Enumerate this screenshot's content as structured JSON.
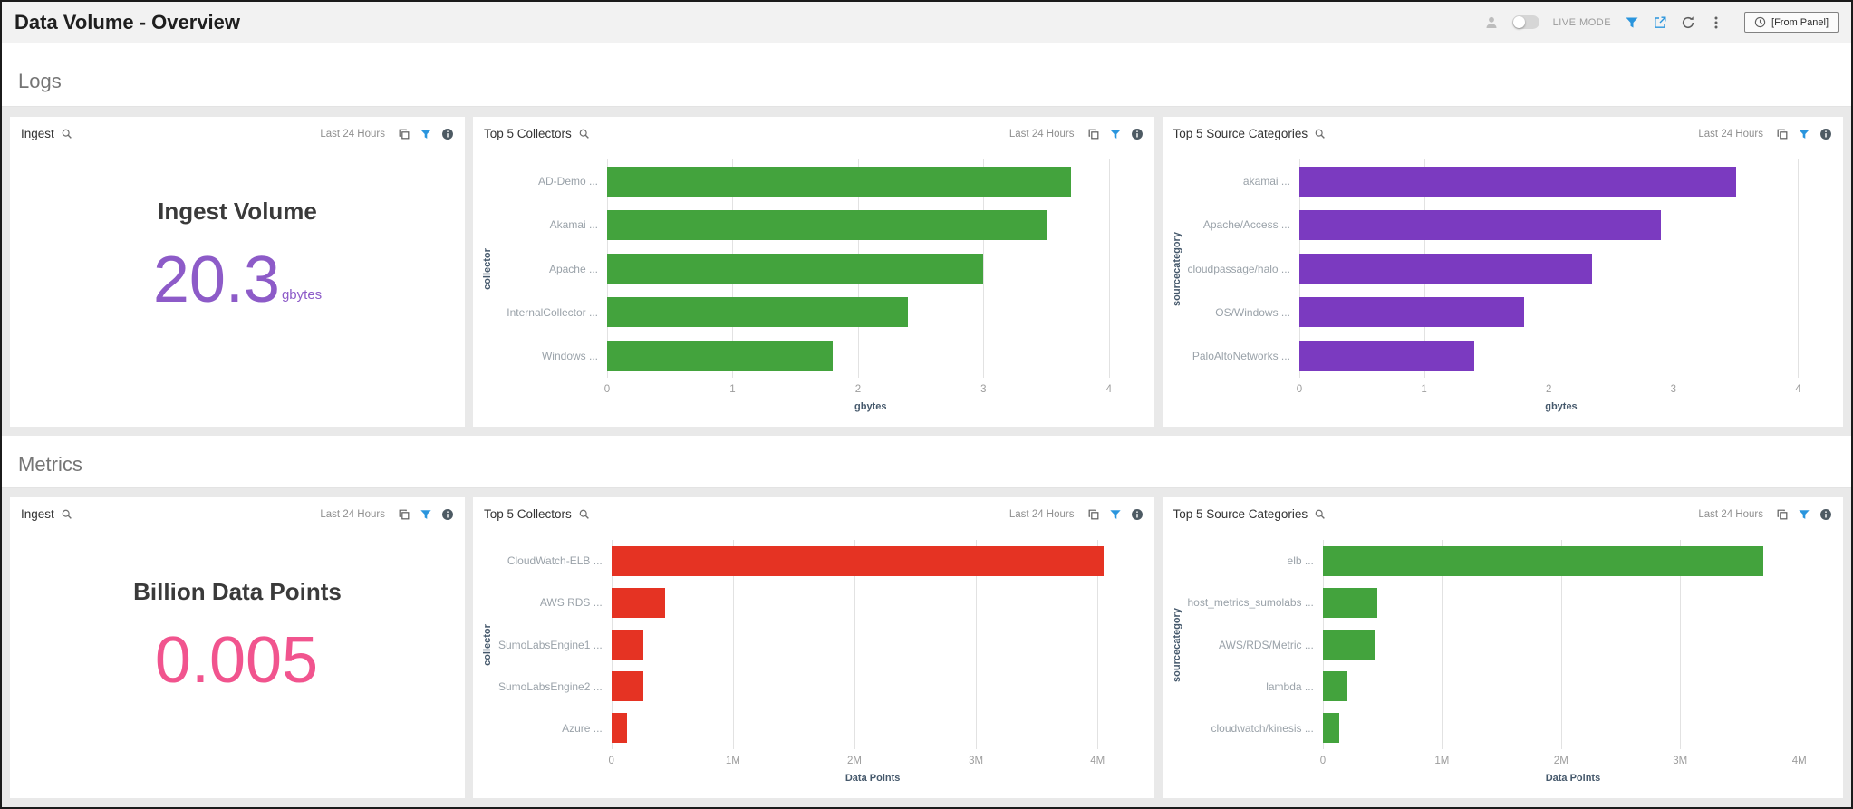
{
  "header": {
    "title": "Data Volume - Overview",
    "live_mode_label": "LIVE MODE",
    "time_range_button": "[From Panel]"
  },
  "sections": {
    "logs": {
      "title": "Logs"
    },
    "metrics": {
      "title": "Metrics"
    }
  },
  "icons": {
    "topbar": [
      "person-icon",
      "live-mode-toggle",
      "filter-icon",
      "share-icon",
      "refresh-icon",
      "kebab-menu-icon",
      "clock-icon"
    ],
    "panel_header": [
      "search-icon",
      "copy-icon",
      "filter-icon",
      "info-icon"
    ]
  },
  "panels": {
    "logs_ingest": {
      "title": "Ingest",
      "time_range": "Last 24 Hours",
      "heading": "Ingest Volume",
      "value": "20.3",
      "unit": "gbytes",
      "value_color": "#8d5bc8"
    },
    "logs_collectors": {
      "title": "Top 5 Collectors",
      "time_range": "Last 24 Hours"
    },
    "logs_sources": {
      "title": "Top 5 Source Categories",
      "time_range": "Last 24 Hours"
    },
    "metrics_ingest": {
      "title": "Ingest",
      "time_range": "Last 24 Hours",
      "heading": "Billion Data Points",
      "value": "0.005",
      "unit": "",
      "value_color": "#f1548e"
    },
    "metrics_collectors": {
      "title": "Top 5 Collectors",
      "time_range": "Last 24 Hours"
    },
    "metrics_sources": {
      "title": "Top 5 Source Categories",
      "time_range": "Last 24 Hours"
    }
  },
  "chart_data": [
    {
      "id": "logs_collectors",
      "type": "bar",
      "orientation": "horizontal",
      "title": "Top 5 Collectors",
      "categories": [
        "AD-Demo",
        "Akamai",
        "Apache",
        "InternalCollector",
        "Windows"
      ],
      "category_suffix": " ...",
      "values": [
        3.7,
        3.5,
        3.0,
        2.4,
        1.8
      ],
      "xlabel": "gbytes",
      "ylabel": "collector",
      "xmax": 4.2,
      "ticks": [
        {
          "value": 0,
          "label": "0"
        },
        {
          "value": 1,
          "label": "1"
        },
        {
          "value": 2,
          "label": "2"
        },
        {
          "value": 3,
          "label": "3"
        },
        {
          "value": 4,
          "label": "4"
        }
      ],
      "bar_color": "#43a33d",
      "grid": true,
      "legend": false
    },
    {
      "id": "logs_sources",
      "type": "bar",
      "orientation": "horizontal",
      "title": "Top 5 Source Categories",
      "categories": [
        "akamai",
        "Apache/Access",
        "cloudpassage/halo",
        "OS/Windows",
        "PaloAltoNetworks"
      ],
      "category_suffix": " ...",
      "values": [
        3.5,
        2.9,
        2.35,
        1.8,
        1.4
      ],
      "xlabel": "gbytes",
      "ylabel": "sourcecategory",
      "xmax": 4.2,
      "ticks": [
        {
          "value": 0,
          "label": "0"
        },
        {
          "value": 1,
          "label": "1"
        },
        {
          "value": 2,
          "label": "2"
        },
        {
          "value": 3,
          "label": "3"
        },
        {
          "value": 4,
          "label": "4"
        }
      ],
      "bar_color": "#7b3ac0",
      "grid": true,
      "legend": false
    },
    {
      "id": "metrics_collectors",
      "type": "bar",
      "orientation": "horizontal",
      "title": "Top 5 Collectors",
      "categories": [
        "CloudWatch-ELB",
        "AWS RDS",
        "SumoLabsEngine1",
        "SumoLabsEngine2",
        "Azure"
      ],
      "category_suffix": " ...",
      "values": [
        4050000,
        440000,
        260000,
        260000,
        130000
      ],
      "xlabel": "Data Points",
      "ylabel": "collector",
      "xmax": 4300000,
      "ticks": [
        {
          "value": 0,
          "label": "0"
        },
        {
          "value": 1000000,
          "label": "1M"
        },
        {
          "value": 2000000,
          "label": "2M"
        },
        {
          "value": 3000000,
          "label": "3M"
        },
        {
          "value": 4000000,
          "label": "4M"
        }
      ],
      "bar_color": "#e53323",
      "grid": true,
      "legend": false
    },
    {
      "id": "metrics_sources",
      "type": "bar",
      "orientation": "horizontal",
      "title": "Top 5 Source Categories",
      "categories": [
        "elb",
        "host_metrics_sumolabs",
        "AWS/RDS/Metric",
        "lambda",
        "cloudwatch/kinesis"
      ],
      "category_suffix": " ...",
      "values": [
        3700000,
        460000,
        440000,
        210000,
        140000
      ],
      "xlabel": "Data Points",
      "ylabel": "sourcecategory",
      "xmax": 4200000,
      "ticks": [
        {
          "value": 0,
          "label": "0"
        },
        {
          "value": 1000000,
          "label": "1M"
        },
        {
          "value": 2000000,
          "label": "2M"
        },
        {
          "value": 3000000,
          "label": "3M"
        },
        {
          "value": 4000000,
          "label": "4M"
        }
      ],
      "bar_color": "#43a33d",
      "grid": true,
      "legend": false
    }
  ]
}
